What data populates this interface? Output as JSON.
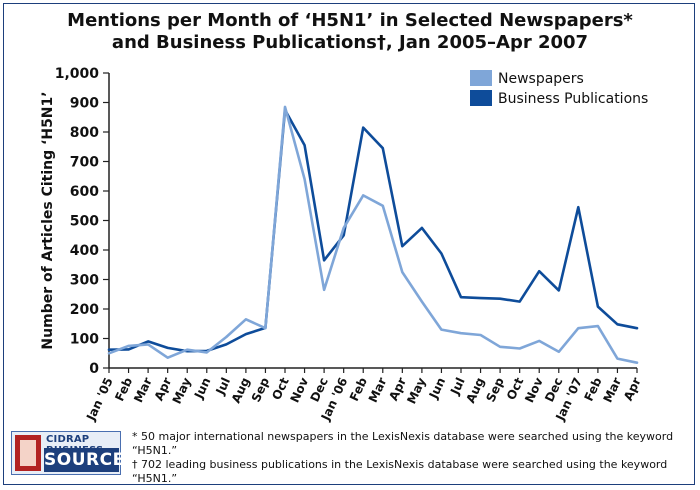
{
  "chart_data": {
    "type": "line",
    "title_line1": "Mentions per Month of ‘H5N1’ in Selected Newspapers*",
    "title_line2": "and Business Publications†, Jan 2005–Apr 2007",
    "ylabel": "Number of Articles Citing ‘H5N1’",
    "xlabel": "",
    "ylim": [
      0,
      1000
    ],
    "yticks": [
      "0",
      "100",
      "200",
      "300",
      "400",
      "500",
      "600",
      "700",
      "800",
      "900",
      "1,000"
    ],
    "categories": [
      "Jan '05",
      "Feb",
      "Mar",
      "Apr",
      "May",
      "Jun",
      "Jul",
      "Aug",
      "Sep",
      "Oct",
      "Nov",
      "Dec",
      "Jan '06",
      "Feb",
      "Mar",
      "Apr",
      "May",
      "Jun",
      "Jul",
      "Aug",
      "Sep",
      "Oct",
      "Nov",
      "Dec",
      "Jan '07",
      "Feb",
      "Mar",
      "Apr"
    ],
    "legend_position": "top-right",
    "series": [
      {
        "name": "Newspapers",
        "color": "#7fa6d8",
        "values": [
          50,
          75,
          80,
          35,
          62,
          53,
          105,
          165,
          135,
          885,
          640,
          265,
          475,
          585,
          550,
          325,
          225,
          130,
          118,
          112,
          72,
          66,
          92,
          55,
          135,
          142,
          32,
          18
        ]
      },
      {
        "name": "Business Publications",
        "color": "#0e4c9a",
        "values": [
          62,
          63,
          90,
          68,
          57,
          58,
          80,
          115,
          136,
          875,
          755,
          365,
          450,
          815,
          745,
          413,
          475,
          388,
          240,
          237,
          235,
          225,
          328,
          263,
          545,
          208,
          148,
          135
        ]
      }
    ]
  },
  "footnotes": {
    "note1": "* 50 major international newspapers in the LexisNexis database were searched using the keyword “H5N1.”",
    "note2": "† 702 leading business publications in the LexisNexis database were searched using the keyword “H5N1.”"
  },
  "logo": {
    "top_text": "CIDRAP BUSINESS",
    "bottom_text": "SOURCE"
  }
}
